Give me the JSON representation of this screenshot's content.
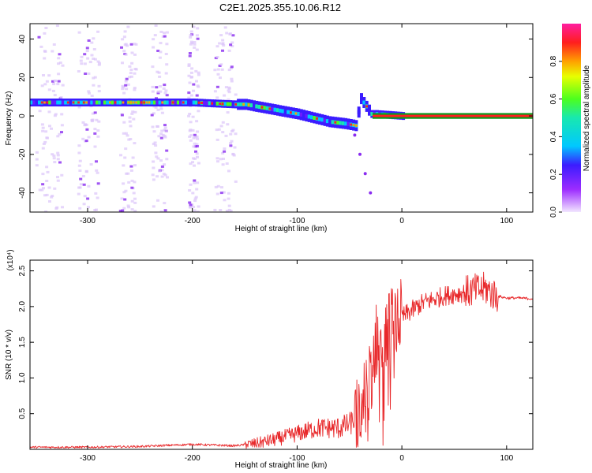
{
  "title": "C2E1.2025.355.10.06.R12",
  "chart_data": [
    {
      "type": "heatmap",
      "xlabel": "Height of straight line (km)",
      "ylabel": "Frequency (Hz)",
      "xlim": [
        -355,
        125
      ],
      "ylim": [
        -50,
        48
      ],
      "x_ticks": [
        -300,
        -200,
        -100,
        0,
        100
      ],
      "y_ticks": [
        -40,
        -20,
        0,
        20,
        40
      ],
      "colorbar": {
        "label": "Normalized spectral amplitude",
        "range": [
          0.0,
          1.0
        ],
        "ticks": [
          0.0,
          0.2,
          0.4,
          0.6,
          0.8
        ]
      },
      "ridge_x": [
        -355,
        -300,
        -250,
        -200,
        -160,
        -150,
        -130,
        -120,
        -100,
        -85,
        -70,
        -55,
        -45,
        -40,
        -30,
        -25,
        0,
        20,
        60,
        90,
        125
      ],
      "ridge_y": [
        7,
        7,
        7,
        7,
        6,
        6,
        4,
        3,
        1,
        -1,
        -3,
        -4,
        -5,
        9,
        1,
        1,
        0,
        0,
        0,
        0,
        0
      ],
      "secondary_branch_x": [
        -45,
        -40,
        -35,
        -30
      ],
      "secondary_branch_y": [
        -10,
        -20,
        -30,
        -40
      ]
    },
    {
      "type": "line",
      "xlabel": "Height of straight line (km)",
      "ylabel": "SNR (10 * v/v)",
      "scale_label": "(x10⁴)",
      "xlim": [
        -355,
        125
      ],
      "ylim": [
        0,
        2.65
      ],
      "x_ticks": [
        -300,
        -200,
        -100,
        0,
        100
      ],
      "y_ticks": [
        0.5,
        1.0,
        1.5,
        2.0,
        2.5
      ],
      "series": [
        {
          "name": "SNR",
          "color": "#e8282a",
          "x": [
            -355,
            -300,
            -250,
            -200,
            -160,
            -140,
            -120,
            -100,
            -80,
            -60,
            -50,
            -40,
            -30,
            -25,
            -20,
            -15,
            -10,
            -5,
            0,
            10,
            20,
            40,
            60,
            80,
            90,
            100,
            110,
            125
          ],
          "y": [
            0.03,
            0.03,
            0.04,
            0.07,
            0.05,
            0.08,
            0.14,
            0.22,
            0.3,
            0.3,
            0.35,
            0.5,
            1.0,
            1.5,
            1.7,
            1.6,
            1.75,
            1.8,
            1.85,
            1.95,
            2.05,
            2.15,
            2.2,
            2.25,
            2.15,
            2.12,
            2.12,
            2.11
          ]
        }
      ]
    }
  ]
}
